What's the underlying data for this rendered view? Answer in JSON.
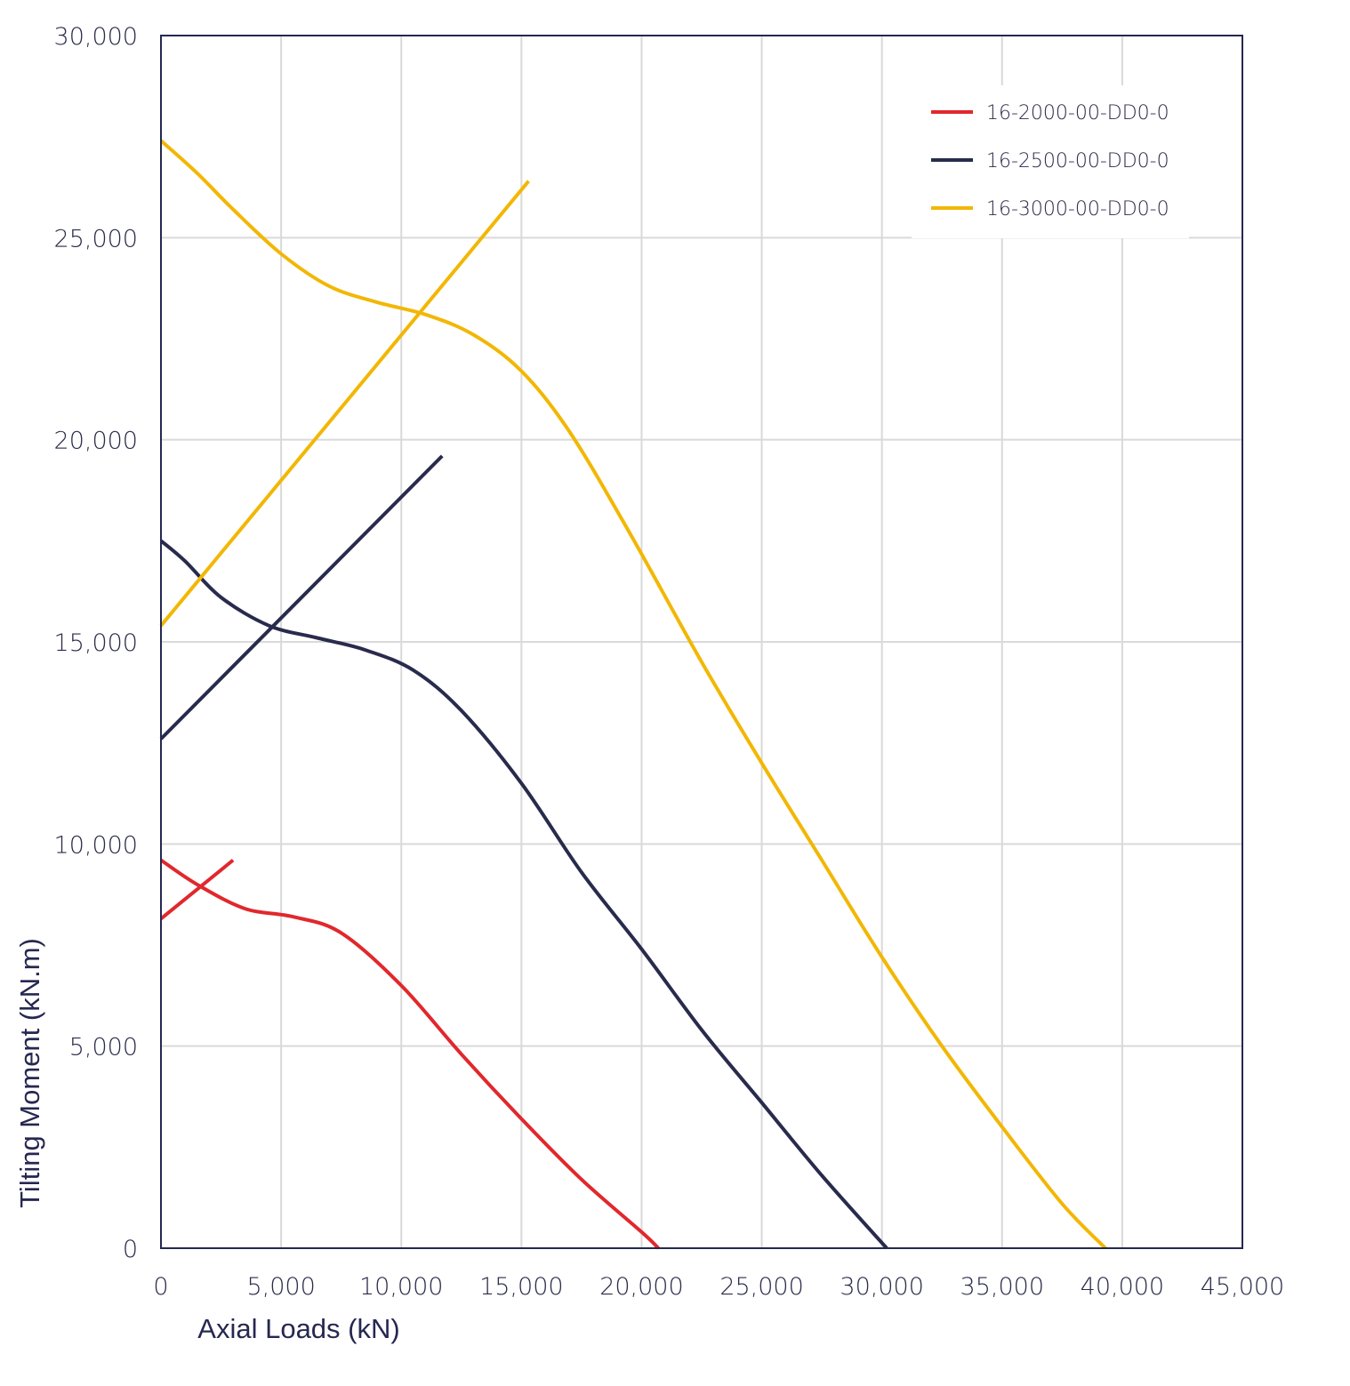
{
  "chart_data": {
    "type": "line",
    "title": "",
    "xlabel": "Axial Loads (kN)",
    "ylabel": "Tilting Moment (kN.m)",
    "xlim": [
      0,
      45000
    ],
    "ylim": [
      0,
      30000
    ],
    "x_ticks": [
      0,
      5000,
      10000,
      15000,
      20000,
      25000,
      30000,
      35000,
      40000,
      45000
    ],
    "x_tick_labels": [
      "0",
      "5,000",
      "10,000",
      "15,000",
      "20,000",
      "25,000",
      "30,000",
      "35,000",
      "40,000",
      "45,000"
    ],
    "y_ticks": [
      0,
      5000,
      10000,
      15000,
      20000,
      25000,
      30000
    ],
    "y_tick_labels": [
      "0",
      "5,000",
      "10,000",
      "15,000",
      "20,000",
      "25,000",
      "30,000"
    ],
    "grid": true,
    "legend_position": "top-right",
    "series": [
      {
        "name": "16-2000-00-DD0-0",
        "color": "#e0282d",
        "curves": [
          {
            "x": [
              0,
              3000
            ],
            "y": [
              8150,
              9600
            ]
          },
          {
            "x": [
              0,
              1500,
              3500,
              5500,
              7500,
              10000,
              12500,
              15000,
              17500,
              20000,
              20700
            ],
            "y": [
              9600,
              9000,
              8400,
              8200,
              7800,
              6500,
              4800,
              3200,
              1700,
              400,
              0
            ]
          }
        ]
      },
      {
        "name": "16-2500-00-DD0-0",
        "color": "#292b4d",
        "curves": [
          {
            "x": [
              0,
              11700
            ],
            "y": [
              12600,
              19600
            ]
          },
          {
            "x": [
              0,
              1000,
              2500,
              4500,
              6500,
              8500,
              10500,
              12500,
              15000,
              17500,
              20000,
              22500,
              25000,
              27500,
              30200
            ],
            "y": [
              17500,
              17000,
              16100,
              15400,
              15100,
              14800,
              14300,
              13300,
              11500,
              9300,
              7400,
              5400,
              3600,
              1800,
              0
            ]
          }
        ]
      },
      {
        "name": "16-3000-00-DD0-0",
        "color": "#f2b705",
        "curves": [
          {
            "x": [
              0,
              15300
            ],
            "y": [
              15400,
              26400
            ]
          },
          {
            "x": [
              0,
              1500,
              3000,
              5000,
              7000,
              9000,
              11000,
              13000,
              15000,
              17000,
              19500,
              22500,
              25000,
              27500,
              30000,
              32500,
              35000,
              37500,
              39300
            ],
            "y": [
              27400,
              26600,
              25700,
              24600,
              23800,
              23400,
              23100,
              22600,
              21700,
              20200,
              17700,
              14500,
              12000,
              9600,
              7200,
              5000,
              3000,
              1100,
              0
            ]
          }
        ]
      }
    ]
  }
}
